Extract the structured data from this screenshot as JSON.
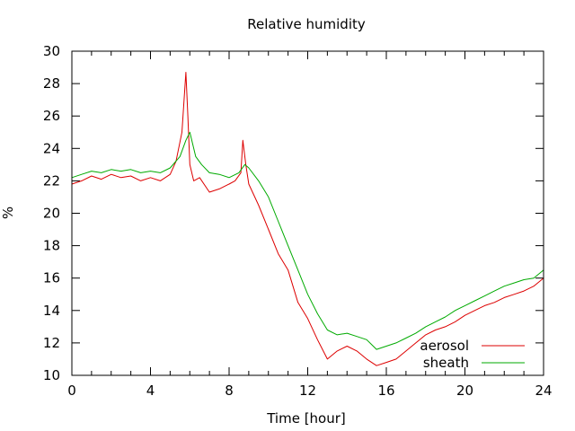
{
  "chart_data": {
    "type": "line",
    "title": "Relative humidity",
    "xlabel": "Time [hour]",
    "ylabel": "%",
    "xlim": [
      0,
      24
    ],
    "ylim": [
      10,
      30
    ],
    "xticks": [
      0,
      4,
      8,
      12,
      16,
      20,
      24
    ],
    "yticks": [
      10,
      12,
      14,
      16,
      18,
      20,
      22,
      24,
      26,
      28,
      30
    ],
    "grid": false,
    "legend_position": "bottom-right",
    "series": [
      {
        "name": "aerosol",
        "color": "#dd0000",
        "x": [
          0,
          0.5,
          1,
          1.5,
          2,
          2.5,
          3,
          3.5,
          4,
          4.5,
          5,
          5.3,
          5.6,
          5.8,
          5.9,
          6.0,
          6.2,
          6.5,
          7,
          7.5,
          8,
          8.3,
          8.6,
          8.7,
          8.85,
          9,
          9.5,
          10,
          10.5,
          11,
          11.5,
          12,
          12.5,
          13,
          13.5,
          14,
          14.5,
          15,
          15.5,
          16,
          16.5,
          17,
          17.5,
          18,
          18.5,
          19,
          19.5,
          20,
          20.5,
          21,
          21.5,
          22,
          22.5,
          23,
          23.5,
          24
        ],
        "values": [
          21.8,
          22.0,
          22.3,
          22.1,
          22.4,
          22.2,
          22.3,
          22.0,
          22.2,
          22.0,
          22.4,
          23.2,
          25.0,
          28.7,
          26.0,
          23.0,
          22.0,
          22.2,
          21.3,
          21.5,
          21.8,
          22.0,
          22.5,
          24.5,
          23.0,
          21.8,
          20.5,
          19.0,
          17.5,
          16.5,
          14.5,
          13.5,
          12.2,
          11.0,
          11.5,
          11.8,
          11.5,
          11.0,
          10.6,
          10.8,
          11.0,
          11.5,
          12.0,
          12.5,
          12.8,
          13.0,
          13.3,
          13.7,
          14.0,
          14.3,
          14.5,
          14.8,
          15.0,
          15.2,
          15.5,
          16.0
        ]
      },
      {
        "name": "sheath",
        "color": "#00aa00",
        "x": [
          0,
          0.5,
          1,
          1.5,
          2,
          2.5,
          3,
          3.5,
          4,
          4.5,
          5,
          5.5,
          5.8,
          6.0,
          6.3,
          6.6,
          7,
          7.5,
          8,
          8.5,
          8.8,
          9,
          9.5,
          10,
          10.5,
          11,
          11.5,
          12,
          12.5,
          13,
          13.5,
          14,
          14.5,
          15,
          15.5,
          16,
          16.5,
          17,
          17.5,
          18,
          18.5,
          19,
          19.5,
          20,
          20.5,
          21,
          21.5,
          22,
          22.5,
          23,
          23.5,
          24
        ],
        "values": [
          22.2,
          22.4,
          22.6,
          22.5,
          22.7,
          22.6,
          22.7,
          22.5,
          22.6,
          22.5,
          22.8,
          23.5,
          24.5,
          25.0,
          23.5,
          23.0,
          22.5,
          22.4,
          22.2,
          22.5,
          23.0,
          22.8,
          22.0,
          21.0,
          19.5,
          18.0,
          16.5,
          15.0,
          13.8,
          12.8,
          12.5,
          12.6,
          12.4,
          12.2,
          11.6,
          11.8,
          12.0,
          12.3,
          12.6,
          13.0,
          13.3,
          13.6,
          14.0,
          14.3,
          14.6,
          14.9,
          15.2,
          15.5,
          15.7,
          15.9,
          16.0,
          16.5
        ]
      }
    ]
  }
}
